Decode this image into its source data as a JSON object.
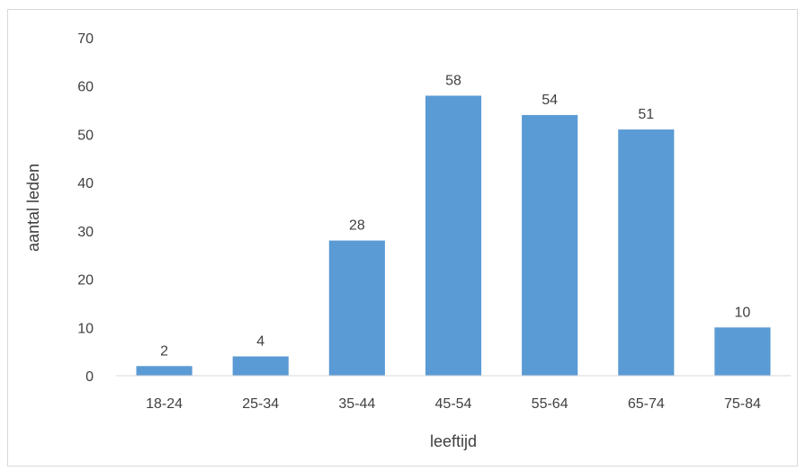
{
  "chart_data": {
    "type": "bar",
    "categories": [
      "18-24",
      "25-34",
      "35-44",
      "45-54",
      "55-64",
      "65-74",
      "75-84"
    ],
    "values": [
      2,
      4,
      28,
      58,
      54,
      51,
      10
    ],
    "data_labels": [
      "2",
      "4",
      "28",
      "58",
      "54",
      "51",
      "10"
    ],
    "xlabel": "leeftijd",
    "ylabel": "aantal leden",
    "ylim": [
      0,
      70
    ],
    "yticks": [
      "0",
      "10",
      "20",
      "30",
      "40",
      "50",
      "60",
      "70"
    ],
    "grid": false,
    "legend": "none",
    "bar_color": "#5b9bd5",
    "axis_color": "#d9d9d9",
    "text_color": "#404040"
  }
}
